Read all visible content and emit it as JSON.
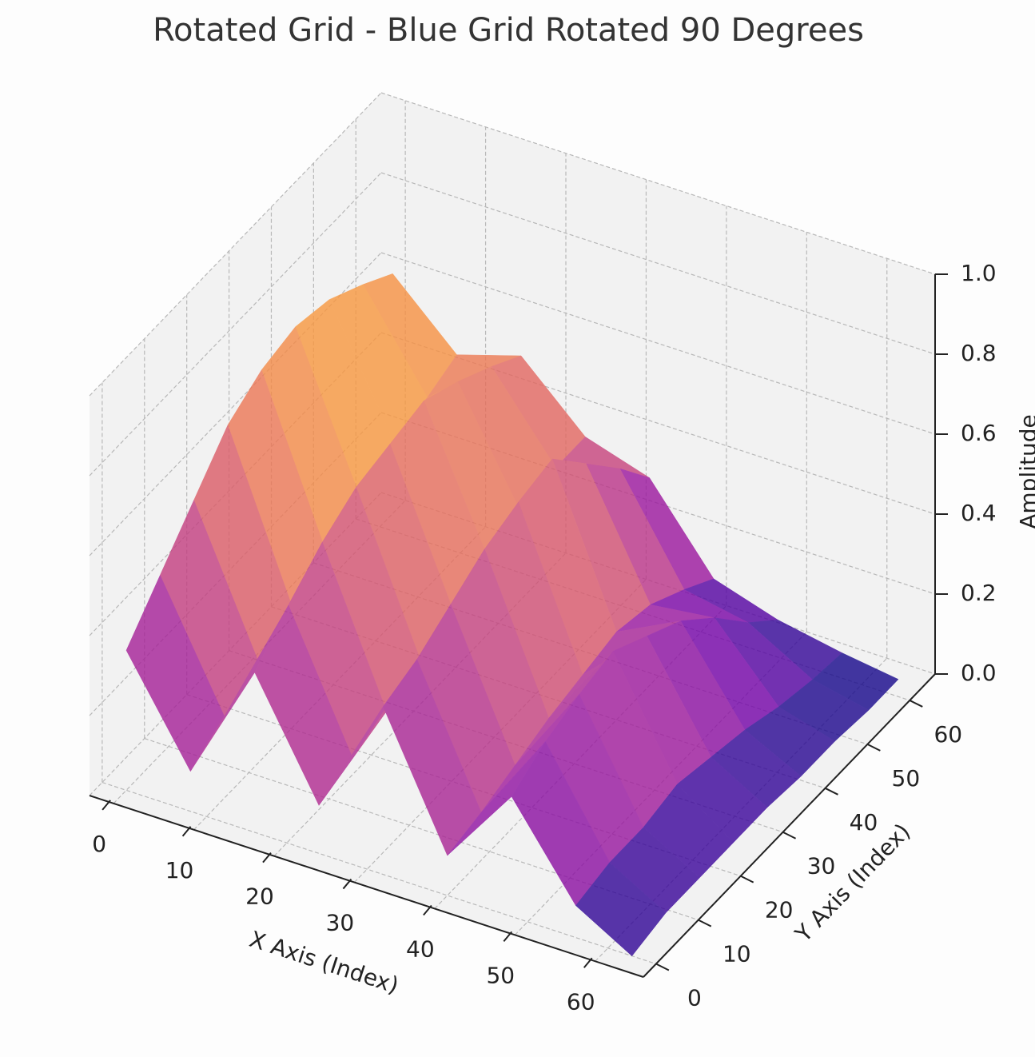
{
  "chart_data": {
    "type": "surface",
    "title": "Rotated Grid - Blue Grid Rotated 90 Degrees",
    "xlabel": "X Axis (Index)",
    "ylabel": "Y Axis (Index)",
    "zlabel": "Amplitude",
    "colormap": "plasma",
    "alpha": 0.8,
    "grid": true,
    "x": [
      0,
      8,
      16,
      24,
      32,
      40,
      48,
      56,
      63
    ],
    "y": [
      0,
      8,
      16,
      24,
      32,
      40,
      48,
      56,
      63
    ],
    "z": [
      [
        0.35,
        0.1,
        0.4,
        0.12,
        0.42,
        0.1,
        0.3,
        0.08,
        0.0
      ],
      [
        0.45,
        0.15,
        0.48,
        0.15,
        0.45,
        0.12,
        0.35,
        0.1,
        0.02
      ],
      [
        0.55,
        0.2,
        0.55,
        0.18,
        0.5,
        0.15,
        0.38,
        0.1,
        0.02
      ],
      [
        0.65,
        0.25,
        0.6,
        0.22,
        0.55,
        0.18,
        0.4,
        0.12,
        0.02
      ],
      [
        0.7,
        0.3,
        0.62,
        0.25,
        0.58,
        0.2,
        0.35,
        0.1,
        0.02
      ],
      [
        0.72,
        0.35,
        0.64,
        0.3,
        0.6,
        0.22,
        0.3,
        0.08,
        0.01
      ],
      [
        0.7,
        0.4,
        0.6,
        0.32,
        0.5,
        0.2,
        0.22,
        0.05,
        0.01
      ],
      [
        0.65,
        0.42,
        0.55,
        0.35,
        0.4,
        0.15,
        0.12,
        0.03,
        0.0
      ],
      [
        0.6,
        0.45,
        0.5,
        0.35,
        0.3,
        0.1,
        0.05,
        0.02,
        0.0
      ]
    ],
    "xlim": [
      -3,
      66
    ],
    "ylim": [
      -3,
      66
    ],
    "zlim": [
      0,
      1
    ],
    "xticks": [
      0,
      10,
      20,
      30,
      40,
      50,
      60
    ],
    "yticks": [
      0,
      10,
      20,
      30,
      40,
      50,
      60
    ],
    "zticks": [
      {
        "value": 0,
        "label": "0.0"
      },
      0.2,
      0.4,
      0.6,
      0.8,
      {
        "value": 1,
        "label": "1.0"
      }
    ]
  }
}
